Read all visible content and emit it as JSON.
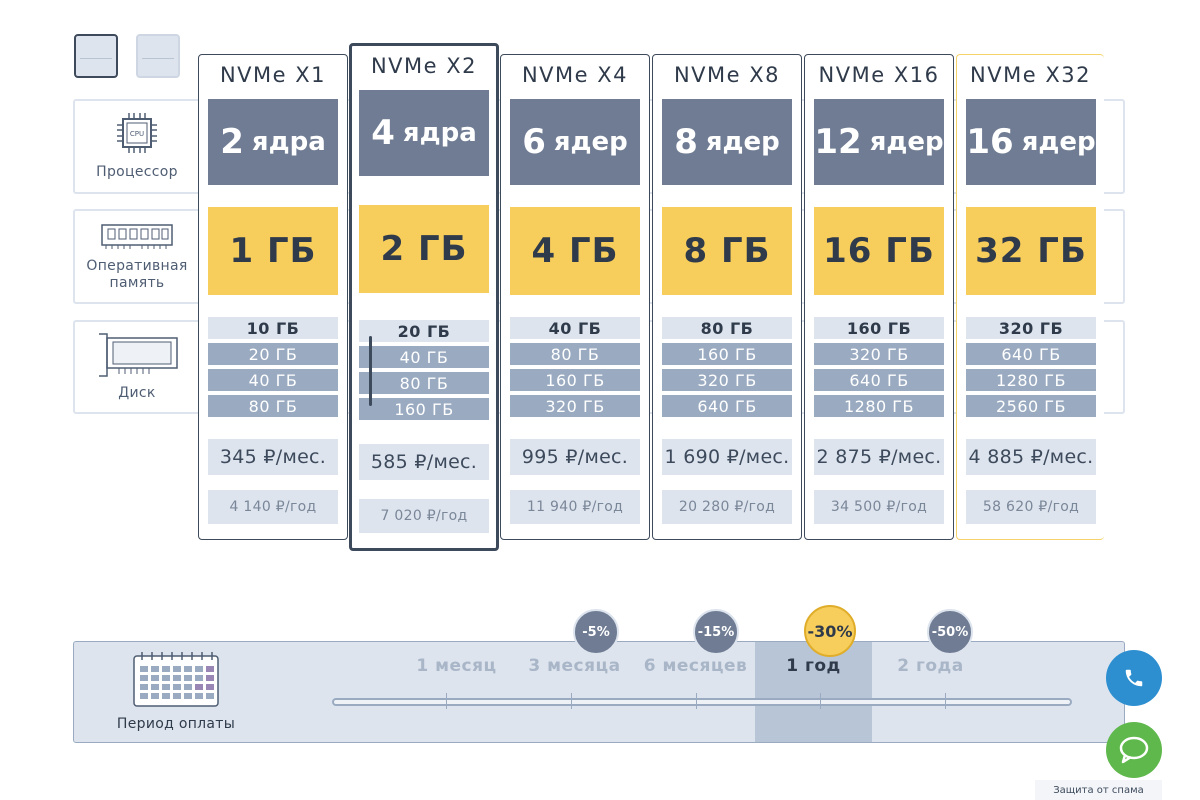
{
  "side": {
    "cpu_label": "Процессор",
    "cpu_chip_text": "CPU",
    "ram_label_line1": "Оперативная",
    "ram_label_line2": "память",
    "disk_label": "Диск",
    "cpu_icon": "cpu-chip-icon",
    "ram_icon": "ram-module-icon",
    "disk_icon": "disk-drive-icon"
  },
  "plans": [
    {
      "name": "NVMe X1",
      "cores": "2",
      "cores_word": "ядра",
      "ram": "1 ГБ",
      "disks": [
        "10 ГБ",
        "20 ГБ",
        "40 ГБ",
        "80 ГБ"
      ],
      "month": "345 ₽/мес.",
      "year": "4 140 ₽/год"
    },
    {
      "name": "NVMe X2",
      "cores": "4",
      "cores_word": "ядра",
      "ram": "2 ГБ",
      "disks": [
        "20 ГБ",
        "40 ГБ",
        "80 ГБ",
        "160 ГБ"
      ],
      "month": "585 ₽/мес.",
      "year": "7 020 ₽/год"
    },
    {
      "name": "NVMe X4",
      "cores": "6",
      "cores_word": "ядер",
      "ram": "4 ГБ",
      "disks": [
        "40 ГБ",
        "80 ГБ",
        "160 ГБ",
        "320 ГБ"
      ],
      "month": "995 ₽/мес.",
      "year": "11 940 ₽/год"
    },
    {
      "name": "NVMe X8",
      "cores": "8",
      "cores_word": "ядер",
      "ram": "8 ГБ",
      "disks": [
        "80 ГБ",
        "160 ГБ",
        "320 ГБ",
        "640 ГБ"
      ],
      "month": "1 690 ₽/мес.",
      "year": "20 280 ₽/год"
    },
    {
      "name": "NVMe X16",
      "cores": "12",
      "cores_word": "ядер",
      "ram": "16 ГБ",
      "disks": [
        "160 ГБ",
        "320 ГБ",
        "640 ГБ",
        "1280 ГБ"
      ],
      "month": "2 875 ₽/мес.",
      "year": "34 500 ₽/год"
    },
    {
      "name": "NVMe X32",
      "cores": "16",
      "cores_word": "ядер",
      "ram": "32 ГБ",
      "disks": [
        "320 ГБ",
        "640 ГБ",
        "1280 ГБ",
        "2560 ГБ"
      ],
      "month": "4 885 ₽/мес.",
      "year": "58 620 ₽/год"
    }
  ],
  "selected_plan": "NVMe X2",
  "period": {
    "label": "Период оплаты",
    "icon": "calendar-icon",
    "options": [
      "1 месяц",
      "3 месяца",
      "6 месяцев",
      "1 год",
      "2 года"
    ],
    "active": "1 год",
    "discounts": [
      "-5%",
      "-15%",
      "-30%",
      "-50%"
    ],
    "active_discount": "-30%"
  },
  "floating": {
    "phone_icon": "phone-icon",
    "chat_icon": "chat-bubble-icon",
    "spam_note": "Защита от спама"
  },
  "colors": {
    "cpu_box": "#6f7c93",
    "ram_box": "#f7cd5c",
    "panel_bg": "#dde4ee",
    "phone_button": "#2d8fd0",
    "chat_button": "#5fb84b"
  }
}
